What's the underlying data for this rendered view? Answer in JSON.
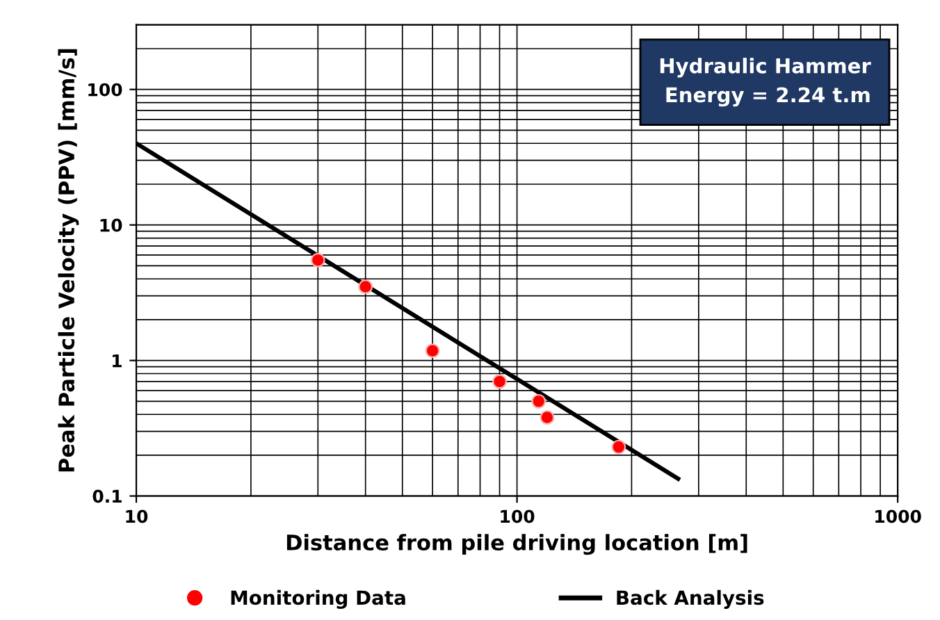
{
  "chart_data": {
    "type": "scatter",
    "xlabel": "Distance from pile driving location [m]",
    "ylabel": "Peak Particle Velocity (PPV) [mm/s]",
    "log": "xy",
    "xlim": [
      10,
      1000
    ],
    "ylim": [
      0.1,
      300
    ],
    "xticks": [
      10,
      100,
      1000
    ],
    "yticks": [
      0.1,
      1,
      10,
      100
    ],
    "grid": true,
    "legend": "bottom",
    "annotations": [
      "Hydraulic Hammer\nEnergy = 2.24 t.m"
    ],
    "series": [
      {
        "name": "Monitoring Data",
        "color": "#ff0000",
        "marker": "circle",
        "x": [
          30,
          40,
          60,
          90,
          114,
          120,
          185
        ],
        "values": [
          5.5,
          3.5,
          1.18,
          0.7,
          0.5,
          0.38,
          0.23
        ]
      },
      {
        "name": "Back Analysis",
        "type": "line",
        "color": "#000000",
        "line_style": "solid",
        "x": [
          10,
          265
        ],
        "values": [
          40,
          0.134
        ]
      }
    ]
  }
}
